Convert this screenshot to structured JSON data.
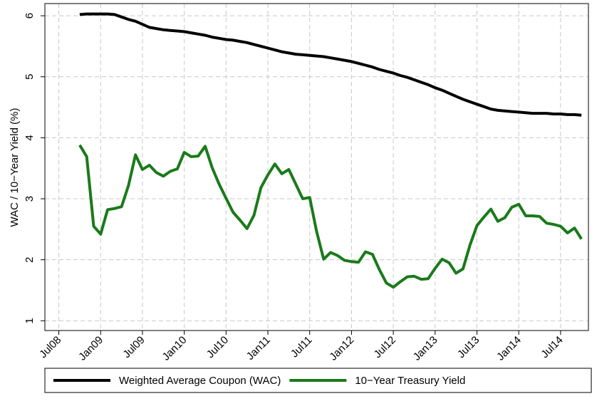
{
  "chart_data": {
    "type": "line",
    "ylabel": "WAC / 10−Year Yield (%)",
    "x": [
      "2008-10",
      "2008-11",
      "2008-12",
      "2009-01",
      "2009-02",
      "2009-03",
      "2009-04",
      "2009-05",
      "2009-06",
      "2009-07",
      "2009-08",
      "2009-09",
      "2009-10",
      "2009-11",
      "2009-12",
      "2010-01",
      "2010-02",
      "2010-03",
      "2010-04",
      "2010-05",
      "2010-06",
      "2010-07",
      "2010-08",
      "2010-09",
      "2010-10",
      "2010-11",
      "2010-12",
      "2011-01",
      "2011-02",
      "2011-03",
      "2011-04",
      "2011-05",
      "2011-06",
      "2011-07",
      "2011-08",
      "2011-09",
      "2011-10",
      "2011-11",
      "2011-12",
      "2012-01",
      "2012-02",
      "2012-03",
      "2012-04",
      "2012-05",
      "2012-06",
      "2012-07",
      "2012-08",
      "2012-09",
      "2012-10",
      "2012-11",
      "2012-12",
      "2013-01",
      "2013-02",
      "2013-03",
      "2013-04",
      "2013-05",
      "2013-06",
      "2013-07",
      "2013-08",
      "2013-09",
      "2013-10",
      "2013-11",
      "2013-12",
      "2014-01",
      "2014-02",
      "2014-03",
      "2014-04",
      "2014-05",
      "2014-06",
      "2014-07",
      "2014-08",
      "2014-09",
      "2014-10"
    ],
    "series": [
      {
        "name": "Weighted Average Coupon (WAC)",
        "color": "#000000",
        "values": [
          6.02,
          6.03,
          6.03,
          6.03,
          6.03,
          6.02,
          5.98,
          5.94,
          5.91,
          5.86,
          5.81,
          5.79,
          5.77,
          5.76,
          5.75,
          5.74,
          5.72,
          5.7,
          5.68,
          5.65,
          5.63,
          5.61,
          5.6,
          5.58,
          5.56,
          5.53,
          5.5,
          5.47,
          5.44,
          5.41,
          5.39,
          5.37,
          5.36,
          5.35,
          5.34,
          5.33,
          5.31,
          5.29,
          5.27,
          5.25,
          5.22,
          5.19,
          5.16,
          5.12,
          5.09,
          5.06,
          5.02,
          4.99,
          4.95,
          4.91,
          4.87,
          4.82,
          4.78,
          4.73,
          4.68,
          4.63,
          4.59,
          4.55,
          4.51,
          4.47,
          4.45,
          4.44,
          4.43,
          4.42,
          4.41,
          4.4,
          4.4,
          4.4,
          4.39,
          4.39,
          4.38,
          4.38,
          4.37
        ]
      },
      {
        "name": "10−Year Treasury Yield",
        "color": "#1a7a1a",
        "values": [
          3.88,
          3.69,
          2.55,
          2.42,
          2.82,
          2.84,
          2.87,
          3.22,
          3.72,
          3.48,
          3.55,
          3.43,
          3.37,
          3.45,
          3.49,
          3.76,
          3.69,
          3.7,
          3.86,
          3.51,
          3.24,
          3.01,
          2.78,
          2.65,
          2.51,
          2.73,
          3.18,
          3.39,
          3.57,
          3.41,
          3.48,
          3.24,
          3.0,
          3.02,
          2.46,
          2.01,
          2.12,
          2.07,
          1.99,
          1.97,
          1.96,
          2.13,
          2.09,
          1.84,
          1.62,
          1.55,
          1.64,
          1.72,
          1.73,
          1.68,
          1.69,
          1.86,
          2.01,
          1.95,
          1.78,
          1.85,
          2.24,
          2.56,
          2.7,
          2.83,
          2.63,
          2.69,
          2.86,
          2.91,
          2.72,
          2.72,
          2.71,
          2.6,
          2.58,
          2.55,
          2.44,
          2.52,
          2.34
        ]
      }
    ],
    "xlim": [
      "2008-05",
      "2014-11"
    ],
    "xticks": [
      {
        "value": "2008-07",
        "label": "Jul08"
      },
      {
        "value": "2009-01",
        "label": "Jan09"
      },
      {
        "value": "2009-07",
        "label": "Jul09"
      },
      {
        "value": "2010-01",
        "label": "Jan10"
      },
      {
        "value": "2010-07",
        "label": "Jul10"
      },
      {
        "value": "2011-01",
        "label": "Jan11"
      },
      {
        "value": "2011-07",
        "label": "Jul11"
      },
      {
        "value": "2012-01",
        "label": "Jan12"
      },
      {
        "value": "2012-07",
        "label": "Jul12"
      },
      {
        "value": "2013-01",
        "label": "Jan13"
      },
      {
        "value": "2013-07",
        "label": "Jul13"
      },
      {
        "value": "2014-01",
        "label": "Jan14"
      },
      {
        "value": "2014-07",
        "label": "Jul14"
      }
    ],
    "ylim": [
      0.84,
      6.2
    ],
    "yticks": [
      1,
      2,
      3,
      4,
      5,
      6
    ],
    "grid": true,
    "legend": "bottom"
  }
}
